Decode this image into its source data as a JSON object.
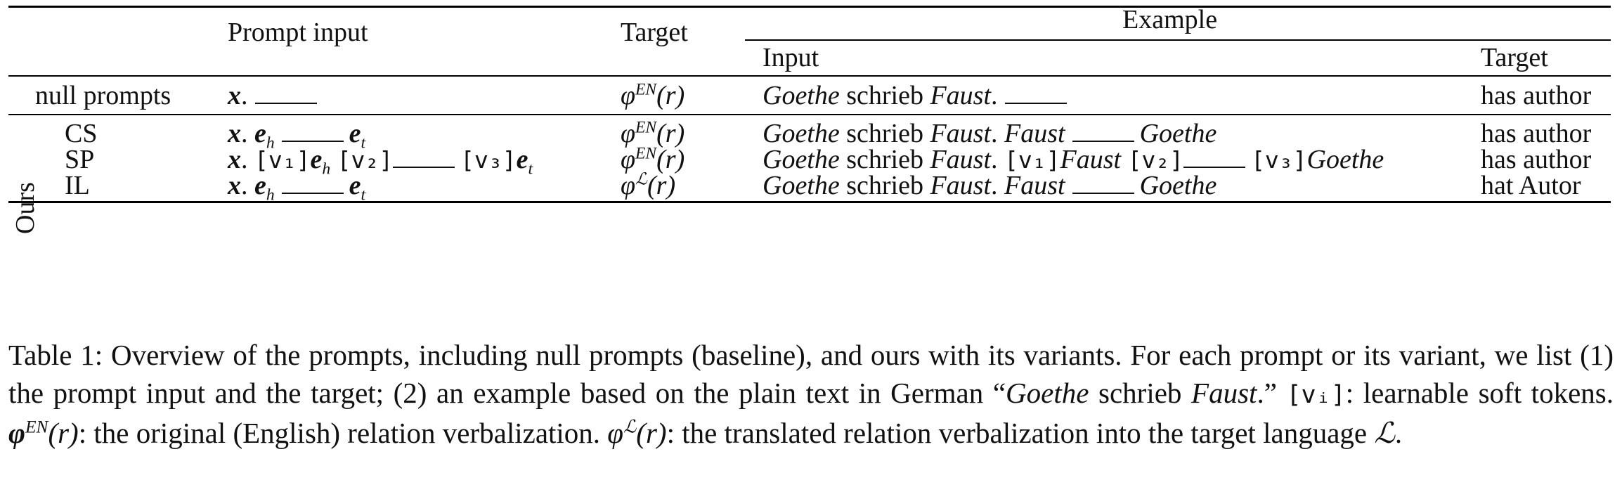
{
  "table": {
    "headers": {
      "prompt_input": "Prompt input",
      "target": "Target",
      "example": "Example",
      "example_input": "Input",
      "example_target": "Target"
    },
    "group_label": "Ours",
    "rows": [
      {
        "name": "null prompts",
        "prompt": {
          "x": "x",
          "dot": "."
        },
        "target": {
          "phi": "φ",
          "sup": "EN",
          "arg": "(r)"
        },
        "example": {
          "subj": "Goethe",
          "verb": " schrieb ",
          "obj": "Faust",
          "dot": "."
        },
        "example_target": "has author"
      },
      {
        "name": "CS",
        "prompt": {
          "x": "x",
          "dot": ".",
          "e": "e",
          "h": "h",
          "t": "t"
        },
        "target": {
          "phi": "φ",
          "sup": "EN",
          "arg": "(r)"
        },
        "example": {
          "subj": "Goethe",
          "verb": " schrieb ",
          "obj": "Faust",
          "dot": ".",
          "head": "Faust",
          "tail": "Goethe"
        },
        "example_target": "has author"
      },
      {
        "name": "SP",
        "prompt": {
          "x": "x",
          "dot": ".",
          "v1": "[v₁]",
          "v2": "[v₂]",
          "v3": "[v₃]",
          "e": "e",
          "h": "h",
          "t": "t"
        },
        "target": {
          "phi": "φ",
          "sup": "EN",
          "arg": "(r)"
        },
        "example": {
          "subj": "Goethe",
          "verb": " schrieb ",
          "obj": "Faust",
          "dot": ".",
          "v1": "[v₁]",
          "head": "Faust",
          "v2": "[v₂]",
          "v3": "[v₃]",
          "tail": "Goethe"
        },
        "example_target": "has author"
      },
      {
        "name": "IL",
        "prompt": {
          "x": "x",
          "dot": ".",
          "e": "e",
          "h": "h",
          "t": "t"
        },
        "target": {
          "phi": "φ",
          "sup": "ℒ",
          "arg": "(r)"
        },
        "example": {
          "subj": "Goethe",
          "verb": " schrieb ",
          "obj": "Faust",
          "dot": ".",
          "head": "Faust",
          "tail": "Goethe"
        },
        "example_target": "hat Autor"
      }
    ]
  },
  "caption": {
    "p1": "Table 1: Overview of the prompts, including null prompts (baseline), and ours with its variants. For each prompt or its variant, we list (1) the prompt input and the target; (2) an example based on the plain text in German “",
    "goethe": "Goethe",
    "p2": " schrieb ",
    "faust": "Faust",
    "p3": ".” ",
    "vi": "[vᵢ]",
    "p4": ": learnable soft tokens. ",
    "phi_bold": "φ",
    "sup_en": "EN",
    "r1": "(r)",
    "p5": ": the original (English) relation verbalization. ",
    "phi": "φ",
    "sup_l": "ℒ",
    "r2": "(r)",
    "p6": ": the translated relation verbalization into the target language ",
    "lang": "ℒ",
    "p7": "."
  }
}
